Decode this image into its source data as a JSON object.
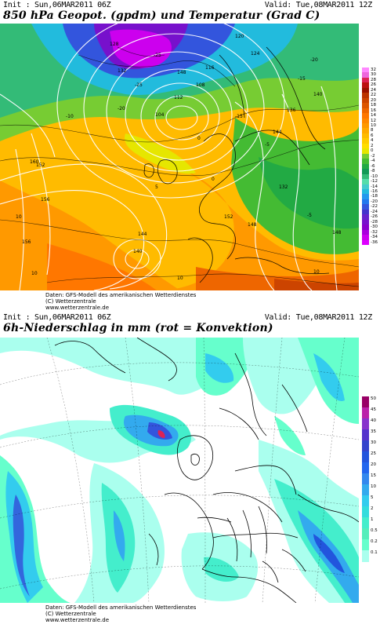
{
  "top_panel": {
    "init": "Init : Sun,06MAR2011 06Z",
    "valid": "Valid: Tue,08MAR2011 12Z",
    "title": "850 hPa Geopot. (gpdm) und Temperatur (Grad C)",
    "colorbar": {
      "labels": [
        "32",
        "30",
        "28",
        "26",
        "24",
        "22",
        "20",
        "18",
        "16",
        "14",
        "12",
        "10",
        "8",
        "6",
        "4",
        "2",
        "0",
        "-2",
        "-4",
        "-6",
        "-8",
        "-10",
        "-12",
        "-14",
        "-16",
        "-18",
        "-20",
        "-22",
        "-24",
        "-26",
        "-28",
        "-30",
        "-32",
        "-34",
        "-36"
      ],
      "colors": [
        "#ff88ff",
        "#ee66dd",
        "#dd2255",
        "#bb1111",
        "#991100",
        "#bb3300",
        "#cc4400",
        "#dd5500",
        "#ee6600",
        "#ff7700",
        "#ff8800",
        "#ff9900",
        "#ffaa00",
        "#ffbb00",
        "#ffcc00",
        "#ffdd00",
        "#e6e600",
        "#77cc33",
        "#44bb33",
        "#22aa44",
        "#119955",
        "#33bb77",
        "#55ddaa",
        "#44cccc",
        "#22bbdd",
        "#2299ee",
        "#2277ee",
        "#3355dd",
        "#4433cc",
        "#6622cc",
        "#7711cc",
        "#8800cc",
        "#aa00dd",
        "#cc00ee",
        "#dd00ff"
      ]
    },
    "source": [
      "Daten: GFS-Modell des amerikanischen Wetterdienstes",
      "(C) Wetterzentrale",
      "www.wetterzentrale.de"
    ],
    "contour_labels": [
      "112",
      "108",
      "104",
      "116",
      "120",
      "124",
      "128",
      "132",
      "136",
      "140",
      "144",
      "148",
      "152",
      "156",
      "160",
      "144",
      "152",
      "140",
      "148",
      "132",
      "156",
      "148",
      "-10",
      "-25",
      "-15",
      "-20",
      "-5",
      "0",
      "-25",
      "-5",
      "0",
      "10",
      "10",
      "10",
      "5",
      "-15",
      "-20",
      "10"
    ]
  },
  "bottom_panel": {
    "init": "Init : Sun,06MAR2011 06Z",
    "valid": "Valid: Tue,08MAR2011 12Z",
    "title": "6h-Niederschlag in mm (rot = Konvektion)",
    "colorbar": {
      "labels": [
        "50",
        "45",
        "40",
        "35",
        "30",
        "25",
        "20",
        "15",
        "10",
        "5",
        "2",
        "1",
        "0.5",
        "0.2",
        "0.1"
      ],
      "colors": [
        "#990066",
        "#bb22aa",
        "#8833cc",
        "#5533cc",
        "#3344cc",
        "#2255dd",
        "#2266ee",
        "#3388ee",
        "#33aaee",
        "#33ccee",
        "#33dddd",
        "#44eecc",
        "#55eebb",
        "#66ffcc",
        "#aaffee"
      ]
    },
    "source": [
      "Daten: GFS-Modell des amerikanischen Wetterdienstes",
      "(C) Wetterzentrale",
      "www.wetterzentrale.de"
    ]
  }
}
